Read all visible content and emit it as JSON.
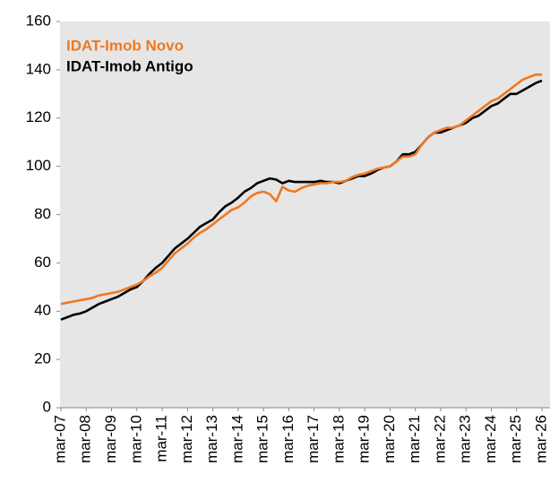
{
  "chart_data": {
    "type": "line",
    "categories": [
      "mar-07",
      null,
      null,
      null,
      "mar-08",
      null,
      null,
      null,
      "mar-09",
      null,
      null,
      null,
      "mar-10",
      null,
      null,
      null,
      "mar-11",
      null,
      null,
      null,
      "mar-12",
      null,
      null,
      null,
      "mar-13",
      null,
      null,
      null,
      "mar-14",
      null,
      null,
      null,
      "mar-15",
      null,
      null,
      null,
      "mar-16",
      null,
      null,
      null,
      "mar-17",
      null,
      null,
      null,
      "mar-18",
      null,
      null,
      null,
      "mar-19",
      null,
      null,
      null,
      "mar-20",
      null,
      null,
      null,
      "mar-21",
      null,
      null,
      null,
      "mar-22",
      null,
      null,
      null,
      "mar-23",
      null,
      null,
      null,
      "mar-24",
      null,
      null,
      null,
      "mar-25",
      null,
      null,
      null,
      "mar-26"
    ],
    "series": [
      {
        "name": "IDAT-Imob Novo",
        "color": "#f07820",
        "values": [
          43,
          43.5,
          44,
          44.5,
          45,
          45.5,
          46.5,
          47,
          47.5,
          48,
          49,
          50,
          51,
          52.5,
          54.5,
          56,
          58,
          61,
          64,
          66,
          68,
          70.5,
          72.5,
          74,
          76,
          78,
          80,
          82,
          83,
          85,
          87.5,
          89,
          89.5,
          88.5,
          85.5,
          91.5,
          90,
          89.5,
          91,
          92,
          92.5,
          93,
          93,
          93.5,
          93.5,
          94,
          95.5,
          96.5,
          97,
          98,
          99,
          99.5,
          100,
          102,
          104,
          104,
          105,
          109,
          112,
          114,
          115,
          116,
          116,
          117,
          119,
          121,
          123,
          125,
          127,
          128,
          130,
          132,
          134,
          136,
          137,
          138,
          138
        ]
      },
      {
        "name": "IDAT-Imob Antigo",
        "color": "#000000",
        "values": [
          36.5,
          37.5,
          38.5,
          39,
          40,
          41.5,
          43,
          44,
          45,
          46,
          47.5,
          49,
          50,
          52.5,
          55.5,
          58,
          60,
          63,
          66,
          68,
          70,
          72.5,
          75,
          76.5,
          78,
          81,
          83.5,
          85,
          87,
          89.5,
          91,
          93,
          94,
          95,
          94.5,
          93,
          94,
          93.5,
          93.5,
          93.5,
          93.5,
          94,
          93.5,
          93.5,
          93,
          94,
          95,
          96,
          96,
          97,
          98.5,
          99.5,
          100,
          102,
          105,
          105,
          106,
          109,
          112,
          114,
          114,
          115,
          116,
          117,
          118,
          120,
          121,
          123,
          125,
          126,
          128,
          130,
          130,
          131.5,
          133,
          134.5,
          135.5
        ]
      }
    ],
    "ylim": [
      0,
      160
    ],
    "yticks": [
      0,
      20,
      40,
      60,
      80,
      100,
      120,
      140,
      160
    ]
  }
}
